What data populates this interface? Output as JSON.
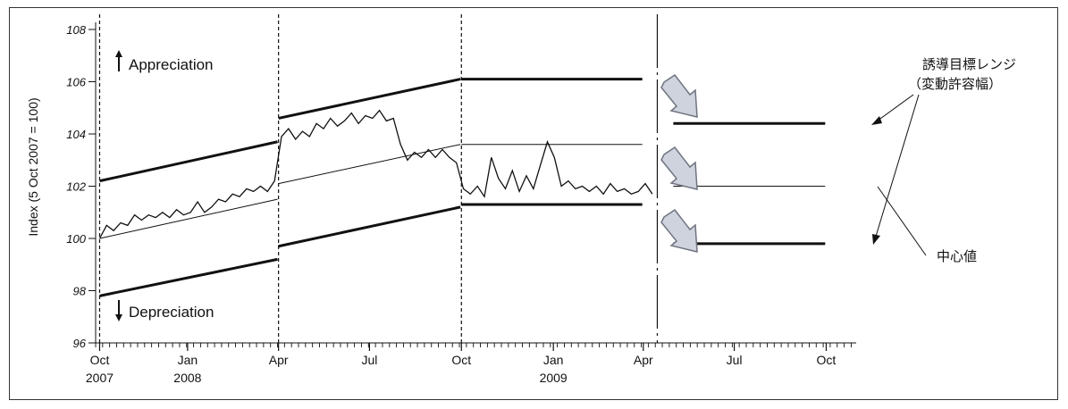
{
  "chart_data": {
    "type": "line",
    "ylabel": "Index (5 Oct 2007 = 100)",
    "ylim": [
      96,
      108
    ],
    "y_ticks": [
      "96",
      "98",
      "100",
      "102",
      "104",
      "106",
      "108"
    ],
    "x_tick_labels": [
      {
        "date": "2007-10-05",
        "label": "Oct",
        "sub": "2007"
      },
      {
        "date": "2008-01-01",
        "label": "Jan",
        "sub": "2008"
      },
      {
        "date": "2008-04-01",
        "label": "Apr",
        "sub": ""
      },
      {
        "date": "2008-07-01",
        "label": "Jul",
        "sub": ""
      },
      {
        "date": "2008-10-01",
        "label": "Oct",
        "sub": ""
      },
      {
        "date": "2009-01-01",
        "label": "Jan",
        "sub": "2009"
      },
      {
        "date": "2009-04-01",
        "label": "Apr",
        "sub": ""
      },
      {
        "date": "2009-07-01",
        "label": "Jul",
        "sub": ""
      },
      {
        "date": "2009-10-01",
        "label": "Oct",
        "sub": ""
      }
    ],
    "xlim": [
      "2007-10-01",
      "2009-10-31"
    ],
    "period_dividers": [
      "2007-10-05",
      "2008-04-01",
      "2008-10-01"
    ],
    "announcement_line": "2009-04-15",
    "bands": [
      {
        "start": "2007-10-05",
        "end": "2008-03-31",
        "upper": [
          102.2,
          103.7
        ],
        "center": [
          100.0,
          101.5
        ],
        "lower": [
          97.8,
          99.2
        ]
      },
      {
        "start": "2008-04-01",
        "end": "2008-09-30",
        "upper": [
          104.6,
          106.1
        ],
        "center": [
          102.1,
          103.6
        ],
        "lower": [
          99.7,
          101.2
        ]
      },
      {
        "start": "2008-10-01",
        "end": "2009-03-31",
        "upper": [
          106.1,
          106.1
        ],
        "center": [
          103.6,
          103.6
        ],
        "lower": [
          101.3,
          101.3
        ]
      },
      {
        "start": "2009-05-01",
        "end": "2009-09-30",
        "upper": [
          104.4,
          104.4
        ],
        "center": [
          102.0,
          102.0
        ],
        "lower": [
          99.8,
          99.8
        ]
      }
    ],
    "series": [
      {
        "name": "",
        "x": [
          "2007-10-05",
          "2007-10-12",
          "2007-10-19",
          "2007-10-26",
          "2007-11-02",
          "2007-11-09",
          "2007-11-16",
          "2007-11-23",
          "2007-11-30",
          "2007-12-07",
          "2007-12-14",
          "2007-12-21",
          "2007-12-28",
          "2008-01-04",
          "2008-01-11",
          "2008-01-18",
          "2008-01-25",
          "2008-02-01",
          "2008-02-08",
          "2008-02-15",
          "2008-02-22",
          "2008-02-29",
          "2008-03-07",
          "2008-03-14",
          "2008-03-21",
          "2008-03-28",
          "2008-04-04",
          "2008-04-11",
          "2008-04-18",
          "2008-04-25",
          "2008-05-02",
          "2008-05-09",
          "2008-05-16",
          "2008-05-23",
          "2008-05-30",
          "2008-06-06",
          "2008-06-13",
          "2008-06-20",
          "2008-06-27",
          "2008-07-04",
          "2008-07-11",
          "2008-07-18",
          "2008-07-25",
          "2008-08-01",
          "2008-08-08",
          "2008-08-15",
          "2008-08-22",
          "2008-08-29",
          "2008-09-05",
          "2008-09-12",
          "2008-09-19",
          "2008-09-26",
          "2008-10-03",
          "2008-10-10",
          "2008-10-17",
          "2008-10-24",
          "2008-10-31",
          "2008-11-07",
          "2008-11-14",
          "2008-11-21",
          "2008-11-28",
          "2008-12-05",
          "2008-12-12",
          "2008-12-19",
          "2008-12-26",
          "2009-01-02",
          "2009-01-09",
          "2009-01-16",
          "2009-01-23",
          "2009-01-30",
          "2009-02-06",
          "2009-02-13",
          "2009-02-20",
          "2009-02-27",
          "2009-03-06",
          "2009-03-13",
          "2009-03-20",
          "2009-03-27",
          "2009-04-03",
          "2009-04-10"
        ],
        "y": [
          100.0,
          100.5,
          100.3,
          100.6,
          100.5,
          100.9,
          100.7,
          100.9,
          100.8,
          101.0,
          100.8,
          101.1,
          100.9,
          101.0,
          101.4,
          101.0,
          101.2,
          101.5,
          101.4,
          101.7,
          101.6,
          101.9,
          101.8,
          102.0,
          101.8,
          102.2,
          103.9,
          104.2,
          103.8,
          104.1,
          103.9,
          104.4,
          104.2,
          104.6,
          104.3,
          104.5,
          104.8,
          104.4,
          104.7,
          104.6,
          104.9,
          104.5,
          104.6,
          103.6,
          103.0,
          103.3,
          103.1,
          103.4,
          103.1,
          103.4,
          103.1,
          102.9,
          101.9,
          101.7,
          102.0,
          101.6,
          103.1,
          102.3,
          101.9,
          102.6,
          101.8,
          102.4,
          101.9,
          102.8,
          103.7,
          103.1,
          102.0,
          102.2,
          101.9,
          102.0,
          101.8,
          102.0,
          101.7,
          102.1,
          101.8,
          101.9,
          101.7,
          101.8,
          102.1,
          101.7
        ]
      }
    ],
    "annotations": {
      "appreciation": "Appreciation",
      "depreciation": "Depreciation",
      "range_label_line1": "誘導目標レンジ",
      "range_label_line2": "（変動許容幅）",
      "center_label": "中心値"
    }
  }
}
